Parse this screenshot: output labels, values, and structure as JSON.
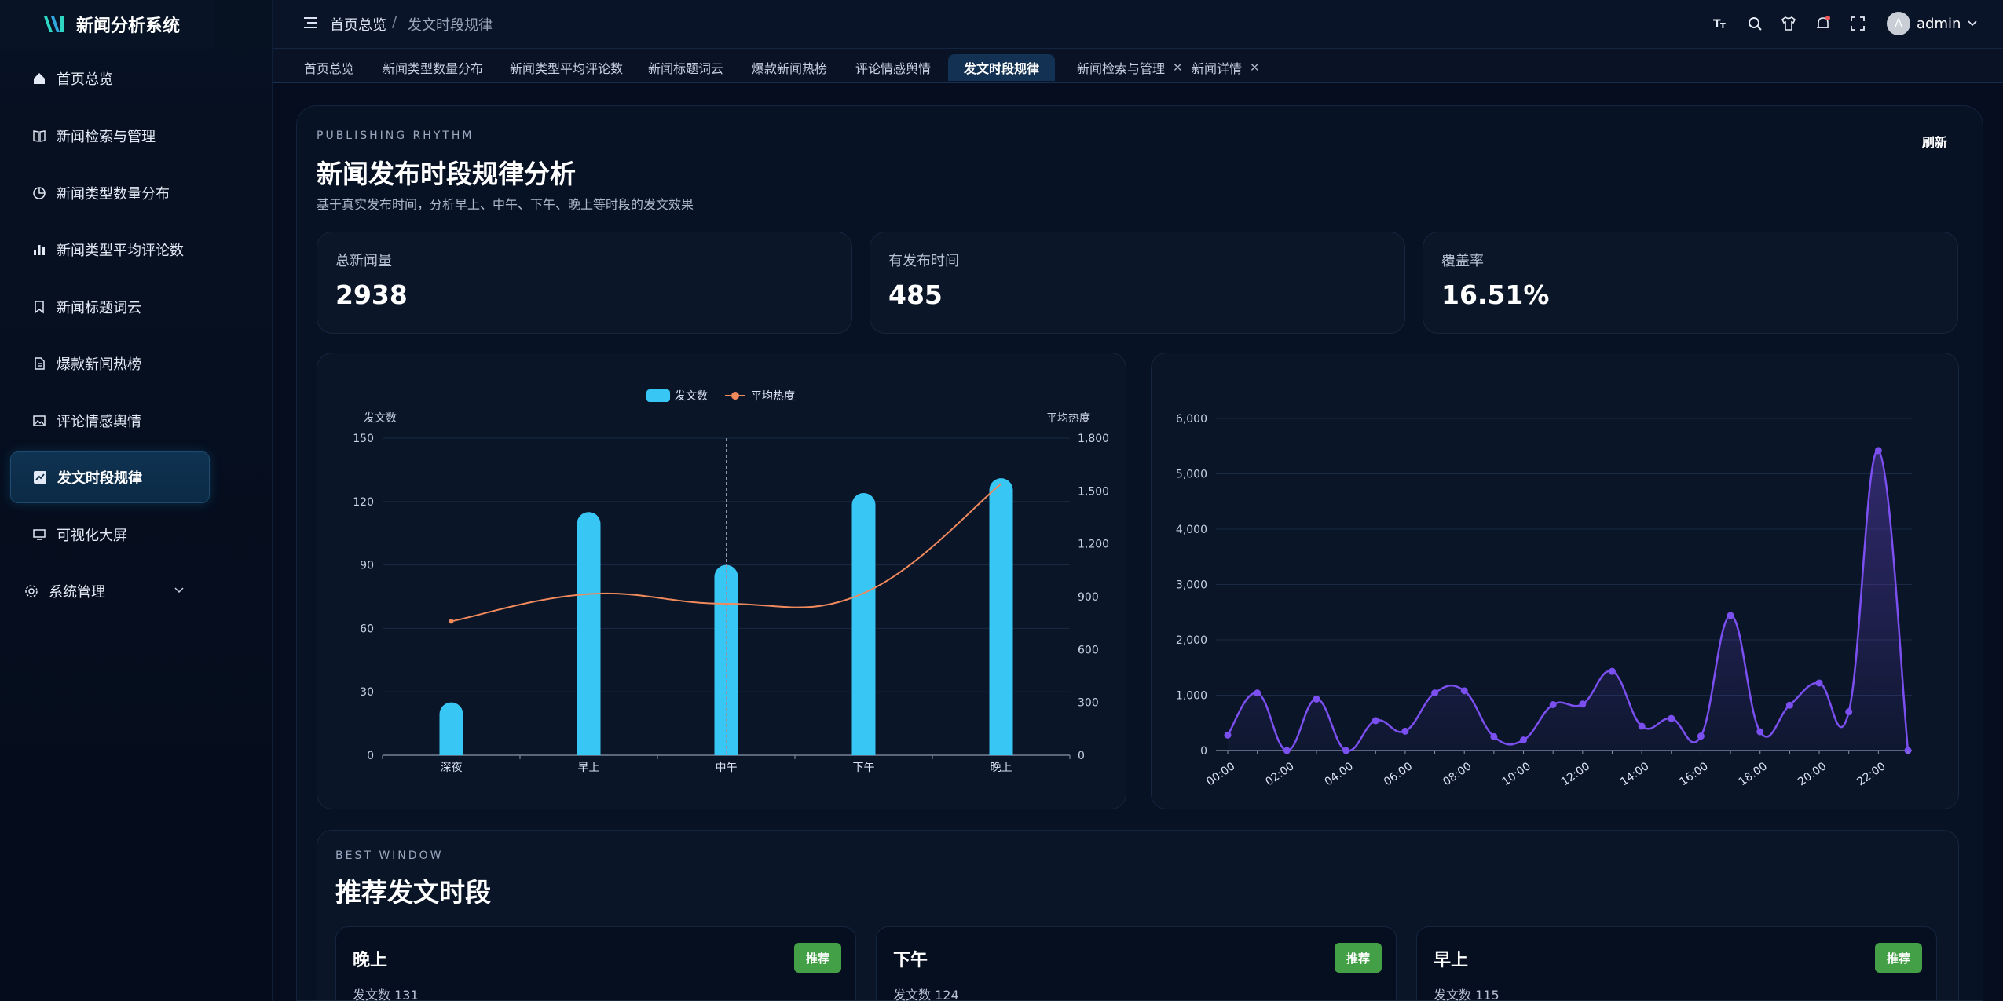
{
  "app": {
    "title": "新闻分析系统"
  },
  "sidebar": {
    "items": [
      {
        "label": "首页总览",
        "icon": "home-icon"
      },
      {
        "label": "新闻检索与管理",
        "icon": "book-icon"
      },
      {
        "label": "新闻类型数量分布",
        "icon": "pie-icon"
      },
      {
        "label": "新闻类型平均评论数",
        "icon": "bar-chart-icon"
      },
      {
        "label": "新闻标题词云",
        "icon": "bookmark-icon"
      },
      {
        "label": "爆款新闻热榜",
        "icon": "document-icon"
      },
      {
        "label": "评论情感舆情",
        "icon": "image-icon"
      },
      {
        "label": "发文时段规律",
        "icon": "trend-icon"
      },
      {
        "label": "可视化大屏",
        "icon": "monitor-icon"
      },
      {
        "label": "系统管理",
        "icon": "gear-icon"
      }
    ],
    "active_index": 7
  },
  "header": {
    "breadcrumb_home": "首页总览",
    "breadcrumb_sep": "/",
    "breadcrumb_current": "发文时段规律",
    "user_avatar": "A",
    "user_name": "admin"
  },
  "tabs": [
    {
      "label": "首页总览",
      "closable": false
    },
    {
      "label": "新闻类型数量分布",
      "closable": false
    },
    {
      "label": "新闻类型平均评论数",
      "closable": false
    },
    {
      "label": "新闻标题词云",
      "closable": false
    },
    {
      "label": "爆款新闻热榜",
      "closable": false
    },
    {
      "label": "评论情感舆情",
      "closable": false
    },
    {
      "label": "发文时段规律",
      "closable": false,
      "active": true
    },
    {
      "label": "新闻检索与管理",
      "closable": true
    },
    {
      "label": "新闻详情",
      "closable": true
    }
  ],
  "page": {
    "eyebrow": "PUBLISHING RHYTHM",
    "title": "新闻发布时段规律分析",
    "subtitle": "基于真实发布时间，分析早上、中午、下午、晚上等时段的发文效果",
    "refresh_label": "刷新"
  },
  "stats": [
    {
      "label": "总新闻量",
      "value": "2938"
    },
    {
      "label": "有发布时间",
      "value": "485"
    },
    {
      "label": "覆盖率",
      "value": "16.51%"
    }
  ],
  "best": {
    "eyebrow": "BEST WINDOW",
    "title": "推荐发文时段",
    "cards": [
      {
        "name": "晚上",
        "badge": "推荐",
        "count_label": "发文数",
        "count": "131"
      },
      {
        "name": "下午",
        "badge": "推荐",
        "count_label": "发文数",
        "count": "124"
      },
      {
        "name": "早上",
        "badge": "推荐",
        "count_label": "发文数",
        "count": "115"
      }
    ]
  },
  "colors": {
    "bar": "#38c6f4",
    "line": "#f08a5d",
    "purple": "#7b4ff0",
    "badge": "#43a047"
  },
  "chart_data": [
    {
      "type": "bar",
      "legend": [
        "发文数",
        "平均热度"
      ],
      "categories": [
        "深夜",
        "早上",
        "中午",
        "下午",
        "晚上"
      ],
      "series": [
        {
          "name": "发文数",
          "type": "bar",
          "values": [
            25,
            115,
            90,
            124,
            131
          ],
          "axis": "left"
        },
        {
          "name": "平均热度",
          "type": "line",
          "values": [
            760,
            915,
            860,
            920,
            1540
          ],
          "axis": "right"
        }
      ],
      "ylabel": "发文数",
      "ylim": [
        0,
        150
      ],
      "yticks": [
        0,
        30,
        60,
        90,
        120,
        150
      ],
      "y2label": "平均热度",
      "y2lim": [
        0,
        1800
      ],
      "y2ticks": [
        0,
        300,
        600,
        900,
        1200,
        1500,
        1800
      ],
      "tick_labels_y2": [
        "0",
        "300",
        "600",
        "900",
        "1,200",
        "1,500",
        "1,800"
      ],
      "legend_position": "top-center"
    },
    {
      "type": "area",
      "x": [
        "00:00",
        "01:00",
        "02:00",
        "03:00",
        "04:00",
        "05:00",
        "06:00",
        "07:00",
        "08:00",
        "09:00",
        "10:00",
        "11:00",
        "12:00",
        "13:00",
        "14:00",
        "15:00",
        "16:00",
        "17:00",
        "18:00",
        "19:00",
        "20:00",
        "21:00",
        "22:00",
        "23:00"
      ],
      "values": [
        280,
        1040,
        0,
        930,
        0,
        540,
        350,
        1040,
        1080,
        250,
        190,
        830,
        840,
        1430,
        440,
        580,
        260,
        2440,
        340,
        820,
        1220,
        700,
        5420,
        0
      ],
      "xticks": [
        "00:00",
        "02:00",
        "04:00",
        "06:00",
        "08:00",
        "10:00",
        "12:00",
        "14:00",
        "16:00",
        "18:00",
        "20:00",
        "22:00"
      ],
      "ylim": [
        0,
        6000
      ],
      "yticks": [
        "0",
        "1,000",
        "2,000",
        "3,000",
        "4,000",
        "5,000",
        "6,000"
      ],
      "grid": true
    }
  ]
}
